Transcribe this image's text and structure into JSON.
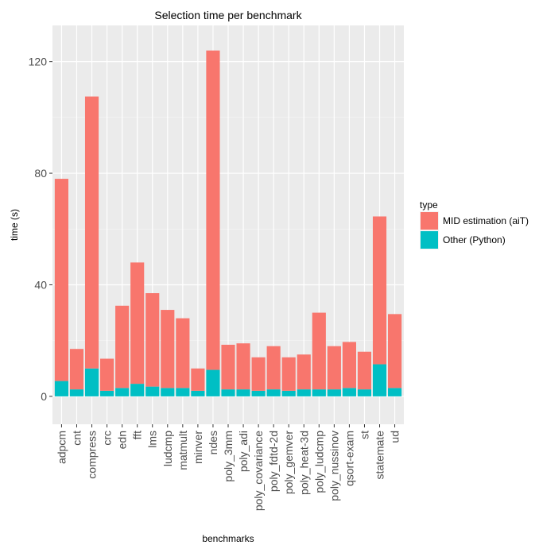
{
  "chart_data": {
    "type": "bar",
    "stacked": true,
    "title": "Selection time per benchmark",
    "xlabel": "benchmarks",
    "ylabel": "time (s)",
    "ylim": [
      -10,
      133
    ],
    "yticks": [
      0,
      40,
      80,
      120
    ],
    "grid": true,
    "legend_position": "right",
    "legend_title": "type",
    "categories": [
      "adpcm",
      "cnt",
      "compress",
      "crc",
      "edn",
      "fft",
      "lms",
      "ludcmp",
      "matmult",
      "minver",
      "ndes",
      "poly_3mm",
      "poly_adi",
      "poly_covariance",
      "poly_fdtd-2d",
      "poly_gemver",
      "poly_heat-3d",
      "poly_ludcmp",
      "poly_nussinov",
      "qsort-exam",
      "st",
      "statemate",
      "ud"
    ],
    "series": [
      {
        "name": "Other (Python)",
        "color": "#00BFC4",
        "values": [
          5.5,
          2.5,
          10,
          2,
          3,
          4.5,
          3.5,
          3,
          3,
          2,
          9.5,
          2.5,
          2.5,
          2,
          2.5,
          2,
          2.5,
          2.5,
          2.5,
          3,
          2.5,
          11.5,
          3
        ]
      },
      {
        "name": "MID estimation (aiT)",
        "color": "#F8766D",
        "values": [
          72.5,
          14.5,
          97.5,
          11.5,
          29.5,
          43.5,
          33.5,
          28,
          25,
          8,
          114.5,
          16,
          16.5,
          12,
          15.5,
          12,
          12.5,
          27.5,
          15.5,
          16.5,
          13.5,
          53,
          26.5
        ]
      }
    ]
  }
}
